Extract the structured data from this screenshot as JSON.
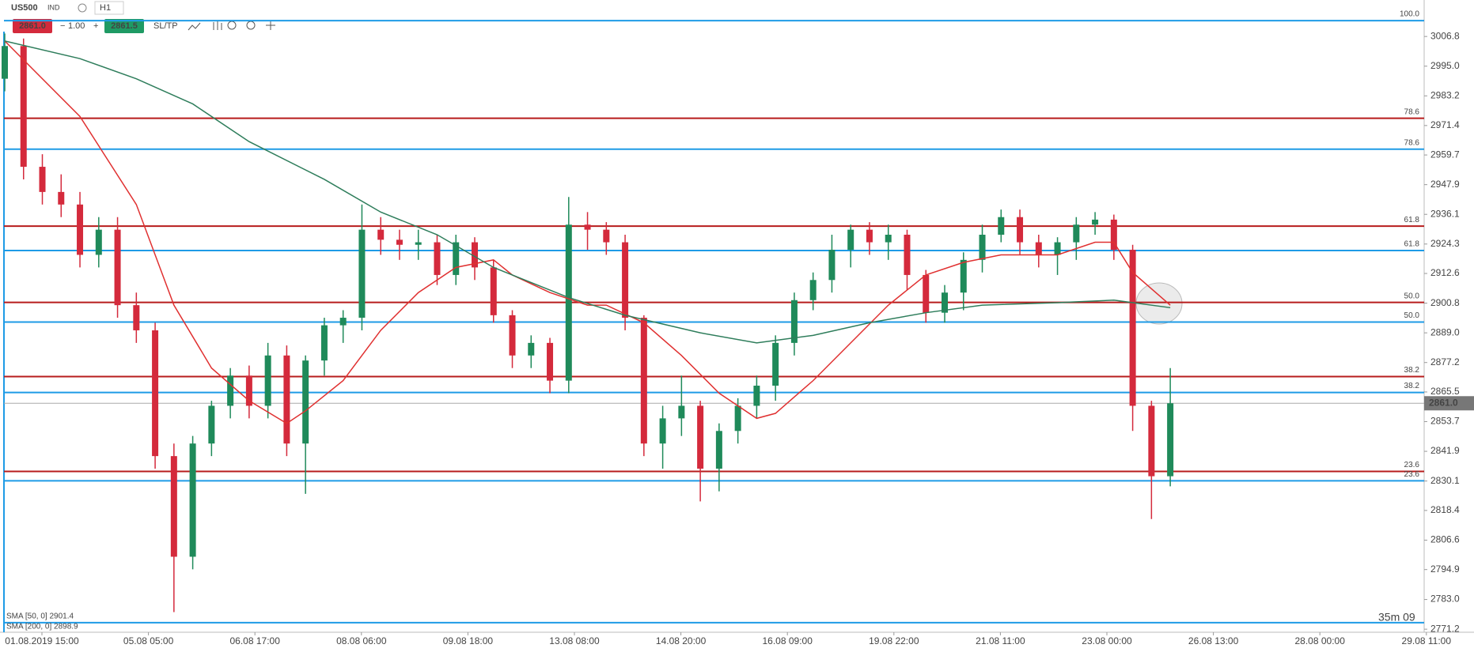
{
  "toolbar": {
    "symbol": "US500",
    "market": "IND",
    "timeframe": "H1",
    "bid": "2861.0",
    "step": "1.00",
    "ask": "2861.5",
    "sltp": "SL/TP"
  },
  "indicators": [
    "SMA [50, 0] 2901.4",
    "SMA [200, 0] 2898.9"
  ],
  "timer": "35m 09",
  "chart_data": {
    "type": "candlestick",
    "categories": [
      "01.08.2019 15:00",
      "05.08 05:00",
      "06.08 17:00",
      "08.08 06:00",
      "09.08 18:00",
      "13.08 08:00",
      "14.08 20:00",
      "16.08 09:00",
      "19.08 22:00",
      "21.08 11:00",
      "23.08 00:00",
      "26.08 13:00",
      "28.08 00:00",
      "29.08 11:00"
    ],
    "ylim": [
      2770.3,
      3021.3
    ],
    "yticks": [
      3006.8,
      {
        "value": 2995,
        "label": "2995.0"
      },
      2983.2,
      2971.4,
      2959.7,
      2947.9,
      2936.1,
      2924.3,
      2912.6,
      2900.8,
      {
        "value": 2889,
        "label": "2889.0"
      },
      2877.2,
      2865.5,
      2853.7,
      2841.9,
      2830.1,
      2818.4,
      2806.6,
      2794.9,
      {
        "value": 2783,
        "label": "2783.0"
      },
      2771.2
    ],
    "up_color": "#1f8a5a",
    "down_color": "#d42a3c",
    "open": [
      2990,
      3003,
      2955,
      2945,
      2940,
      2920,
      2930,
      2900,
      2890,
      2840,
      2800,
      2845,
      2860,
      2872,
      2860,
      2880,
      2845,
      2878,
      2892,
      2895,
      2930,
      2926,
      2924,
      2925,
      2912,
      2925,
      2915,
      2896,
      2880,
      2885,
      2870,
      2932,
      2930,
      2925,
      2895,
      2845,
      2855,
      2860,
      2835,
      2850,
      2860,
      2868,
      2885,
      2902,
      2910,
      2922,
      2930,
      2925,
      2928,
      2912,
      2897,
      2905,
      2918,
      2928,
      2935,
      2925,
      2920,
      2925,
      2932,
      2934,
      2922,
      2860,
      2832
    ],
    "high": [
      3008,
      3006,
      2960,
      2952,
      2945,
      2935,
      2935,
      2905,
      2893,
      2845,
      2848,
      2862,
      2875,
      2876,
      2885,
      2884,
      2880,
      2895,
      2898,
      2940,
      2935,
      2930,
      2930,
      2928,
      2928,
      2927,
      2918,
      2898,
      2888,
      2887,
      2943,
      2937,
      2933,
      2928,
      2896,
      2860,
      2872,
      2862,
      2853,
      2863,
      2872,
      2888,
      2905,
      2913,
      2928,
      2932,
      2933,
      2932,
      2930,
      2914,
      2908,
      2921,
      2932,
      2938,
      2938,
      2928,
      2927,
      2935,
      2937,
      2936,
      2924,
      2862,
      2875
    ],
    "low": [
      2985,
      2950,
      2940,
      2935,
      2915,
      2915,
      2895,
      2885,
      2835,
      2778,
      2795,
      2840,
      2855,
      2855,
      2855,
      2840,
      2825,
      2872,
      2885,
      2890,
      2920,
      2918,
      2918,
      2908,
      2908,
      2910,
      2893,
      2875,
      2875,
      2865,
      2865,
      2922,
      2920,
      2890,
      2840,
      2835,
      2848,
      2822,
      2826,
      2845,
      2855,
      2862,
      2880,
      2898,
      2905,
      2915,
      2920,
      2918,
      2906,
      2893,
      2893,
      2898,
      2913,
      2925,
      2920,
      2915,
      2912,
      2918,
      2928,
      2918,
      2850,
      2815,
      2828
    ],
    "close": [
      3003,
      2955,
      2945,
      2940,
      2920,
      2930,
      2900,
      2890,
      2840,
      2800,
      2845,
      2860,
      2872,
      2860,
      2880,
      2845,
      2878,
      2892,
      2895,
      2930,
      2926,
      2924,
      2925,
      2912,
      2925,
      2915,
      2896,
      2880,
      2885,
      2870,
      2932,
      2930,
      2925,
      2895,
      2845,
      2855,
      2860,
      2835,
      2850,
      2860,
      2868,
      2885,
      2902,
      2910,
      2922,
      2930,
      2925,
      2928,
      2912,
      2897,
      2905,
      2918,
      2928,
      2935,
      2925,
      2920,
      2925,
      2932,
      2934,
      2922,
      2860,
      2832,
      2861
    ],
    "lines": [
      {
        "color": "#e03030",
        "x": [
          0,
          4,
          7,
          9,
          11,
          13,
          15,
          16,
          18,
          20,
          22,
          24,
          26,
          27,
          29,
          31,
          32,
          34,
          36,
          38,
          40,
          41,
          43,
          45,
          47,
          49,
          51,
          53,
          56,
          58,
          59,
          60,
          62
        ],
        "values": [
          3005,
          2975,
          2940,
          2900,
          2875,
          2862,
          2853,
          2858,
          2870,
          2890,
          2905,
          2915,
          2918,
          2912,
          2905,
          2900,
          2900,
          2893,
          2880,
          2865,
          2855,
          2857,
          2870,
          2885,
          2900,
          2912,
          2917,
          2920,
          2920,
          2925,
          2925,
          2913,
          2900
        ]
      },
      {
        "color": "#2e7d5b",
        "x": [
          0,
          4,
          7,
          10,
          13,
          17,
          20,
          23,
          26,
          30,
          33,
          37,
          40,
          43,
          46,
          49,
          52,
          56,
          59,
          62
        ],
        "values": [
          3005,
          2998,
          2990,
          2980,
          2965,
          2950,
          2937,
          2928,
          2915,
          2903,
          2896,
          2889,
          2885,
          2888,
          2893,
          2897,
          2900,
          2901,
          2902,
          2899
        ]
      }
    ],
    "fib": [
      {
        "color": "#b71c1c",
        "levels": [
          {
            "label": "78.6",
            "price": 2974.3
          },
          {
            "label": "61.8",
            "price": 2931.4
          },
          {
            "label": "50.0",
            "price": 2901.1
          },
          {
            "label": "38.2",
            "price": 2871.6
          },
          {
            "label": "23.6",
            "price": 2833.9
          }
        ]
      },
      {
        "color": "#1e9be6",
        "levels": [
          {
            "label": "100.0",
            "price": 3013.1
          },
          {
            "label": "78.6",
            "price": 2962.0
          },
          {
            "label": "61.8",
            "price": 2921.7
          },
          {
            "label": "50.0",
            "price": 2893.3
          },
          {
            "label": "38.2",
            "price": 2865.3
          },
          {
            "label": "23.6",
            "price": 2830.2
          },
          {
            "price": 2773.8
          }
        ]
      }
    ],
    "current_price": {
      "value": 2861,
      "label": "2861.0"
    }
  }
}
